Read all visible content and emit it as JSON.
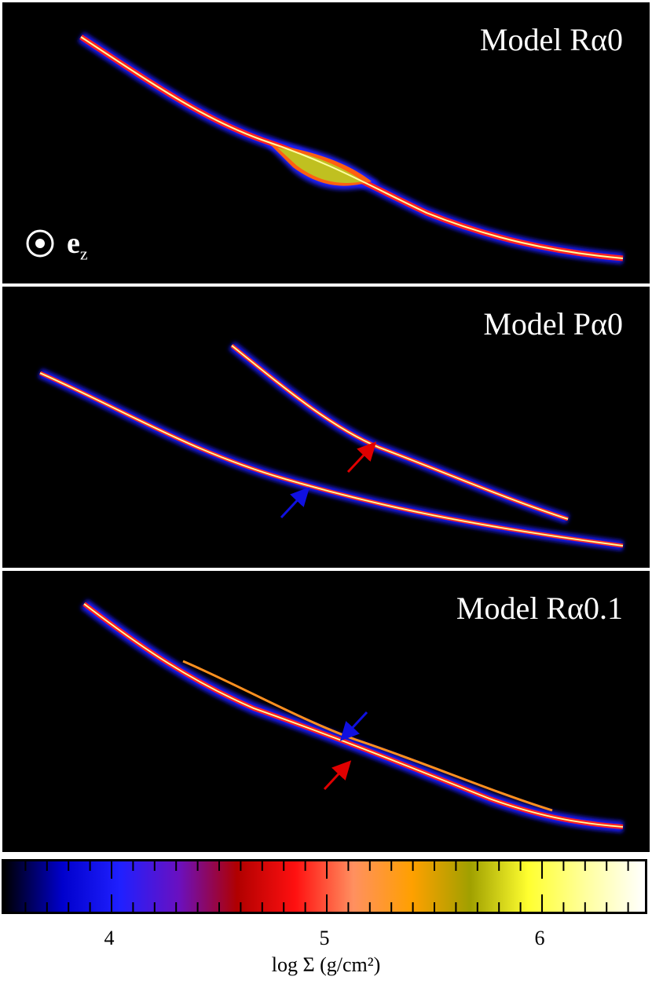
{
  "panels": [
    {
      "title": "Model Rα0",
      "axis_label": "e",
      "axis_sub": "z"
    },
    {
      "title": "Model Pα0"
    },
    {
      "title": "Model Rα0.1"
    }
  ],
  "colorbar": {
    "ticks": [
      "4",
      "5",
      "6"
    ],
    "label": "log Σ (g/cm²)",
    "colors": [
      "#000000",
      "#0000cc",
      "#2020ff",
      "#6a10c0",
      "#b00000",
      "#ff1010",
      "#ff9060",
      "#ffa000",
      "#a0a000",
      "#ffff30",
      "#ffffa0",
      "#ffffff"
    ]
  }
}
